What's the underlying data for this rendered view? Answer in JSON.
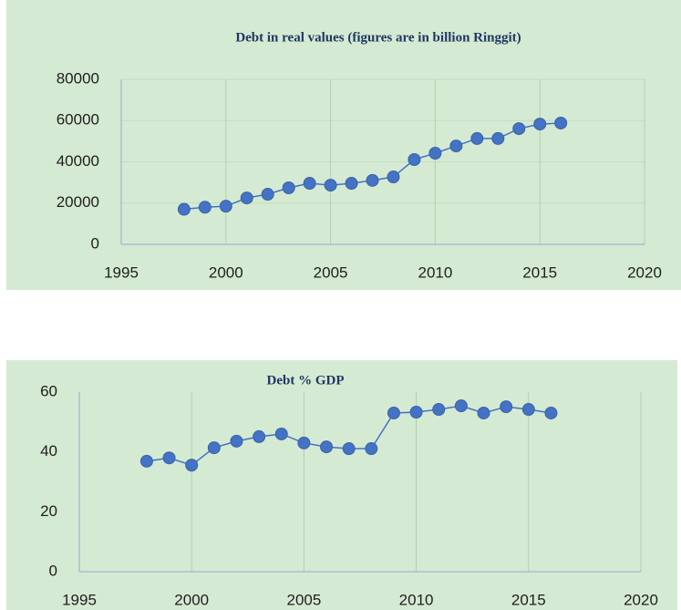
{
  "chart_data": [
    {
      "type": "line",
      "title": "Debt in real values (figures are in billion Ringgit)",
      "x": [
        1998,
        1999,
        2000,
        2001,
        2002,
        2003,
        2004,
        2005,
        2006,
        2007,
        2008,
        2009,
        2010,
        2011,
        2012,
        2013,
        2014,
        2015,
        2016
      ],
      "series": [
        {
          "name": "Debt",
          "color": "#4472c4",
          "values": [
            17000,
            18000,
            18500,
            22500,
            24300,
            27400,
            29600,
            28700,
            29600,
            31000,
            32700,
            41100,
            44200,
            47700,
            51300,
            51300,
            56100,
            58300,
            58800
          ]
        }
      ],
      "xlim": [
        1995,
        2020
      ],
      "xticks": [
        1995,
        2000,
        2005,
        2010,
        2015,
        2020
      ],
      "ylim": [
        0,
        80000
      ],
      "yticks": [
        0,
        20000,
        40000,
        60000,
        80000
      ],
      "xgrid": true,
      "ygrid": true
    },
    {
      "type": "line",
      "title": "Debt % GDP",
      "x": [
        1998,
        1999,
        2000,
        2001,
        2002,
        2003,
        2004,
        2005,
        2006,
        2007,
        2008,
        2009,
        2010,
        2011,
        2012,
        2013,
        2014,
        2015,
        2016
      ],
      "series": [
        {
          "name": "Debt % GDP",
          "color": "#4472c4",
          "values": [
            36.9,
            38,
            35.6,
            41.4,
            43.6,
            45.1,
            46,
            43,
            41.7,
            41.1,
            41.1,
            53,
            53.3,
            54.2,
            55.4,
            53,
            55.1,
            54.2,
            53
          ]
        }
      ],
      "xlim": [
        1995,
        2020
      ],
      "xticks": [
        1995,
        2000,
        2005,
        2010,
        2015,
        2020
      ],
      "ylim": [
        0,
        60
      ],
      "yticks": [
        0,
        20,
        40,
        60
      ],
      "xgrid": true,
      "ygrid": false
    }
  ]
}
